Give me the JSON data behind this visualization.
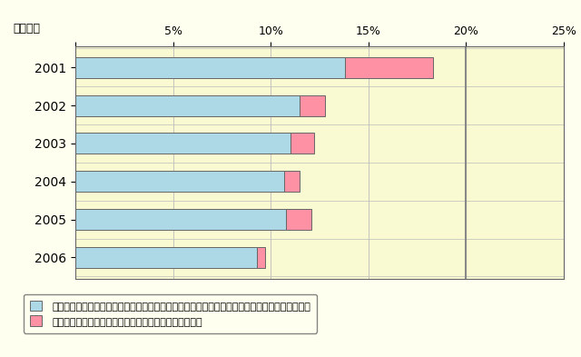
{
  "years": [
    "2001",
    "2002",
    "2003",
    "2004",
    "2005",
    "2006"
  ],
  "blue_values": [
    13.8,
    11.5,
    11.0,
    10.7,
    10.8,
    9.3
  ],
  "pink_values": [
    4.5,
    1.3,
    1.2,
    0.8,
    1.3,
    0.4
  ],
  "blue_color": "#ADD8E6",
  "pink_color": "#FF91A4",
  "bg_color": "#FFFFF0",
  "plot_bg_color": "#FAFAD2",
  "grid_color": "#BBBBBB",
  "border_color": "#666666",
  "xlim": [
    0,
    25
  ],
  "xticks": [
    0,
    5,
    10,
    15,
    20,
    25
  ],
  "xtick_labels": [
    "",
    "5%",
    "10%",
    "15%",
    "20%",
    "25%"
  ],
  "ylabel": "調査年次",
  "legend1": "車の近くにいる時やすぐ戻る時は、キーを付けたままにしたり、ドアをロックしないことがある",
  "legend2": "キーを抜いたり、ドアをロックしたりはあまりしてない",
  "bar_height": 0.55,
  "figsize": [
    6.4,
    3.93
  ],
  "dpi": 100
}
